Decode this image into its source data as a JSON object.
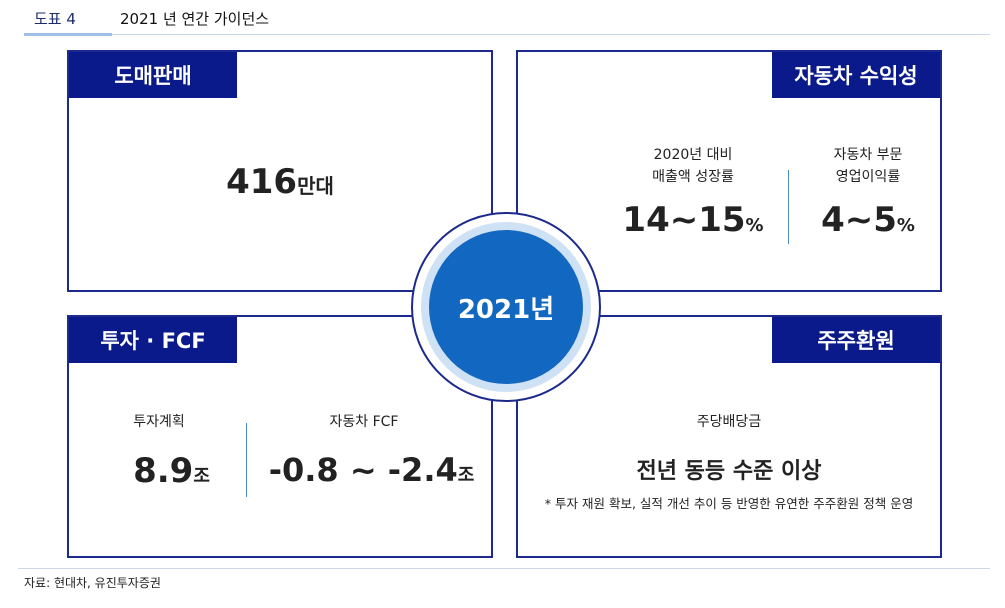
{
  "header": {
    "figure_label": "도표 4",
    "title": "2021 년 연간 가이던스"
  },
  "center": {
    "label": "2021년"
  },
  "wholesale": {
    "tag": "도매판매",
    "value": "416",
    "unit": "만대"
  },
  "auto_profit": {
    "tag": "자동차 수익성",
    "left_label_line1": "2020년 대비",
    "left_label_line2": "매출액 성장률",
    "left_value": "14~15",
    "left_unit": "%",
    "right_label_line1": "자동차 부문",
    "right_label_line2": "영업이익률",
    "right_value": "4~5",
    "right_unit": "%"
  },
  "invest": {
    "tag": "투자 · FCF",
    "left_label": "투자계획",
    "left_value": "8.9",
    "left_unit": "조",
    "right_label": "자동차 FCF",
    "right_value": "-0.8 ~ -2.4",
    "right_unit": "조"
  },
  "shareholder": {
    "tag": "주주환원",
    "label": "주당배당금",
    "value": "전년 동등 수준 이상",
    "note": "* 투자 재원 확보, 실적 개선 추이 등 반영한 유연한 주주환원 정책 운영"
  },
  "source": "자료: 현대차, 유진투자증권"
}
